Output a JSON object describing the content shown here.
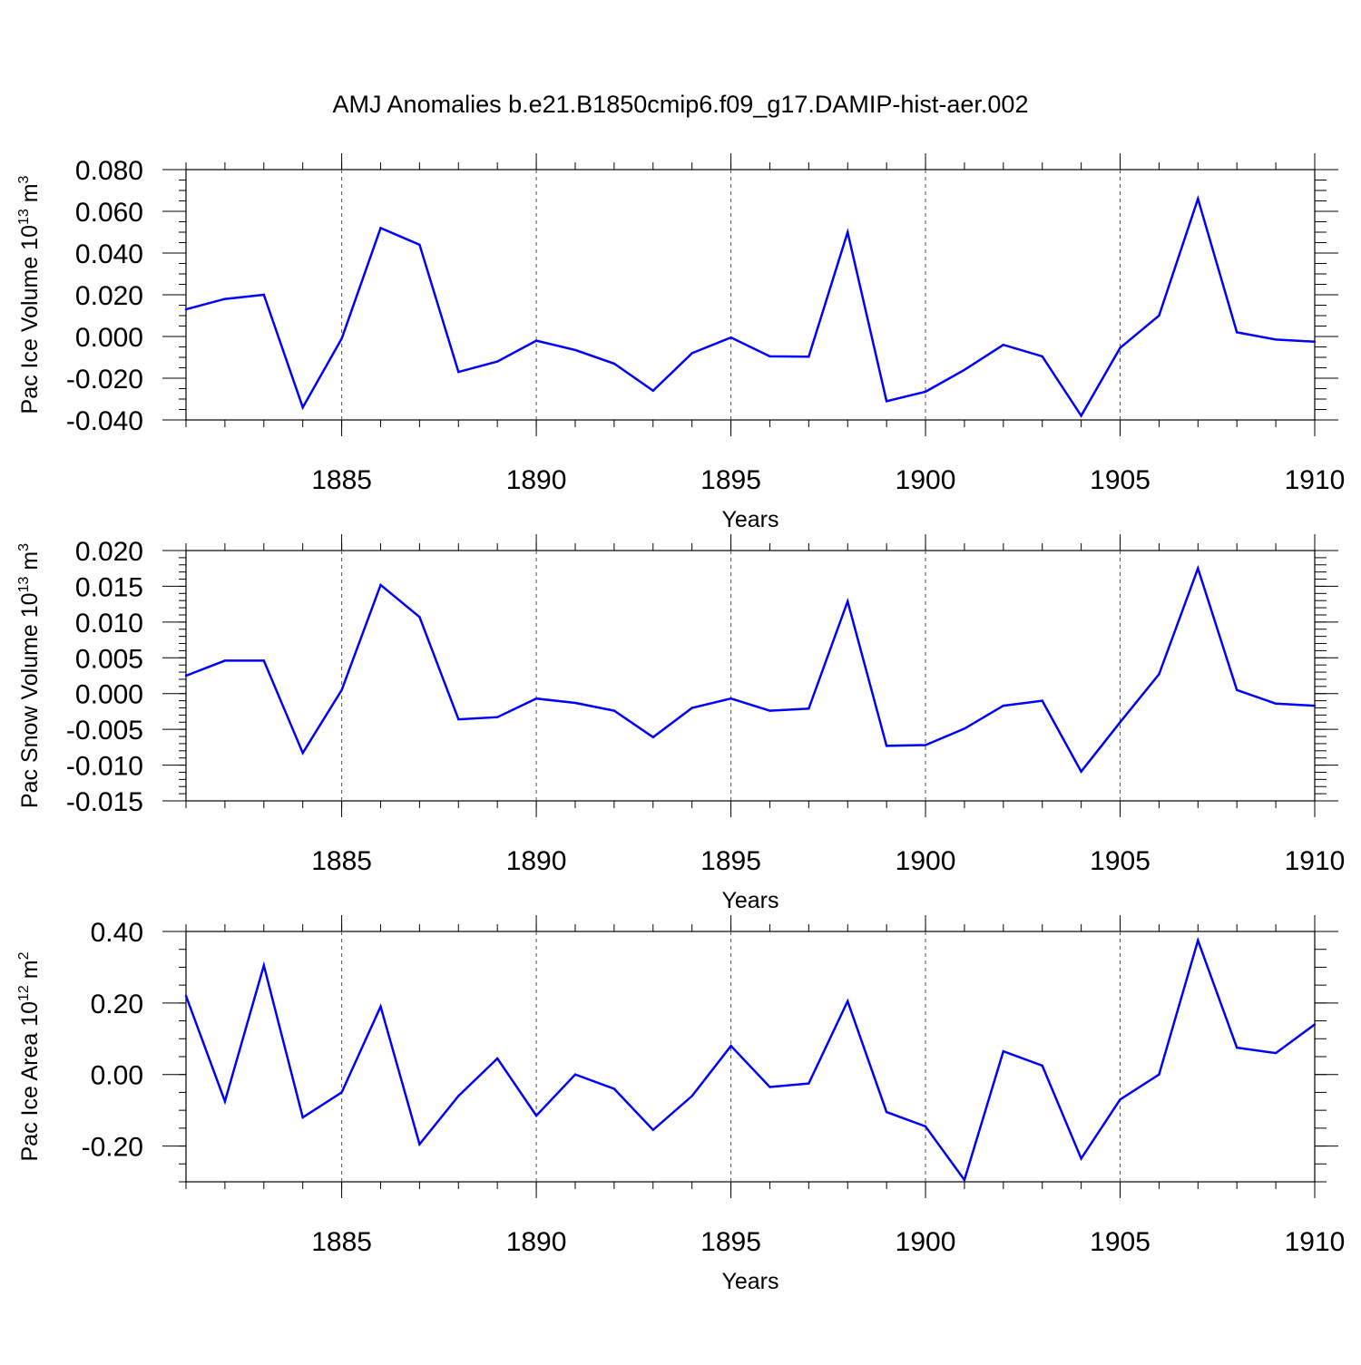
{
  "title": "AMJ Anomalies b.e21.B1850cmip6.f09_g17.DAMIP-hist-aer.002",
  "line_color": "#0000ff",
  "chart_data": [
    {
      "type": "line",
      "ylabel": "Pac Ice Volume 10",
      "ylabel_exp": "13",
      "ylabel_unit": " m",
      "ylabel_unit_exp": "3",
      "xlabel": "Years",
      "xlim": [
        1881,
        1910
      ],
      "ylim": [
        -0.04,
        0.08
      ],
      "yticks": [
        -0.04,
        -0.02,
        0.0,
        0.02,
        0.04,
        0.06,
        0.08
      ],
      "ytick_labels": [
        "-0.040",
        "-0.020",
        "0.000",
        "0.020",
        "0.040",
        "0.060",
        "0.080"
      ],
      "yminor_step": 0.005,
      "xticks": [
        1885,
        1890,
        1895,
        1900,
        1905,
        1910
      ],
      "xtick_labels": [
        "1885",
        "1890",
        "1895",
        "1900",
        "1905",
        "1910"
      ],
      "grid_x": true,
      "x": [
        1881,
        1882,
        1883,
        1884,
        1885,
        1886,
        1887,
        1888,
        1889,
        1890,
        1891,
        1892,
        1893,
        1894,
        1895,
        1896,
        1897,
        1898,
        1899,
        1900,
        1901,
        1902,
        1903,
        1904,
        1905,
        1906,
        1907,
        1908,
        1909,
        1910
      ],
      "values": [
        0.013,
        0.018,
        0.02,
        -0.034,
        -0.001,
        0.052,
        0.044,
        -0.017,
        -0.012,
        -0.002,
        -0.0065,
        -0.013,
        -0.026,
        -0.008,
        -0.0005,
        -0.0095,
        -0.0097,
        0.05,
        -0.031,
        -0.0265,
        -0.016,
        -0.004,
        -0.0095,
        -0.038,
        -0.0055,
        0.01,
        0.066,
        0.002,
        -0.0015,
        -0.0025
      ]
    },
    {
      "type": "line",
      "ylabel": "Pac Snow Volume 10",
      "ylabel_exp": "13",
      "ylabel_unit": " m",
      "ylabel_unit_exp": "3",
      "xlabel": "Years",
      "xlim": [
        1881,
        1910
      ],
      "ylim": [
        -0.015,
        0.02
      ],
      "yticks": [
        -0.015,
        -0.01,
        -0.005,
        0.0,
        0.005,
        0.01,
        0.015,
        0.02
      ],
      "ytick_labels": [
        "-0.015",
        "-0.010",
        "-0.005",
        "0.000",
        "0.005",
        "0.010",
        "0.015",
        "0.020"
      ],
      "yminor_step": 0.001,
      "xticks": [
        1885,
        1890,
        1895,
        1900,
        1905,
        1910
      ],
      "xtick_labels": [
        "1885",
        "1890",
        "1895",
        "1900",
        "1905",
        "1910"
      ],
      "grid_x": true,
      "x": [
        1881,
        1882,
        1883,
        1884,
        1885,
        1886,
        1887,
        1888,
        1889,
        1890,
        1891,
        1892,
        1893,
        1894,
        1895,
        1896,
        1897,
        1898,
        1899,
        1900,
        1901,
        1902,
        1903,
        1904,
        1905,
        1906,
        1907,
        1908,
        1909,
        1910
      ],
      "values": [
        0.0025,
        0.0046,
        0.0046,
        -0.0083,
        0.0005,
        0.0152,
        0.0107,
        -0.0036,
        -0.0033,
        -0.0007,
        -0.0013,
        -0.0024,
        -0.0061,
        -0.002,
        -0.0007,
        -0.0024,
        -0.0021,
        0.0129,
        -0.0073,
        -0.0072,
        -0.0049,
        -0.0017,
        -0.001,
        -0.0109,
        -0.004,
        0.0027,
        0.0175,
        0.0005,
        -0.0014,
        -0.0017
      ]
    },
    {
      "type": "line",
      "ylabel": "Pac Ice Area 10",
      "ylabel_exp": "12",
      "ylabel_unit": " m",
      "ylabel_unit_exp": "2",
      "xlabel": "Years",
      "xlim": [
        1881,
        1910
      ],
      "ylim": [
        -0.3,
        0.4
      ],
      "yticks": [
        -0.2,
        0.0,
        0.2,
        0.4
      ],
      "ytick_labels": [
        "-0.20",
        "0.00",
        "0.20",
        "0.40"
      ],
      "yminor_step": 0.05,
      "xticks": [
        1885,
        1890,
        1895,
        1900,
        1905,
        1910
      ],
      "xtick_labels": [
        "1885",
        "1890",
        "1895",
        "1900",
        "1905",
        "1910"
      ],
      "grid_x": true,
      "x": [
        1881,
        1882,
        1883,
        1884,
        1885,
        1886,
        1887,
        1888,
        1889,
        1890,
        1891,
        1892,
        1893,
        1894,
        1895,
        1896,
        1897,
        1898,
        1899,
        1900,
        1901,
        1902,
        1903,
        1904,
        1905,
        1906,
        1907,
        1908,
        1909,
        1910
      ],
      "values": [
        0.22,
        -0.075,
        0.305,
        -0.12,
        -0.05,
        0.19,
        -0.195,
        -0.06,
        0.045,
        -0.115,
        0.0,
        -0.04,
        -0.155,
        -0.06,
        0.08,
        -0.035,
        -0.025,
        0.205,
        -0.105,
        -0.145,
        -0.295,
        0.065,
        0.025,
        -0.235,
        -0.07,
        0.0,
        0.375,
        0.075,
        0.06,
        0.14
      ]
    }
  ]
}
